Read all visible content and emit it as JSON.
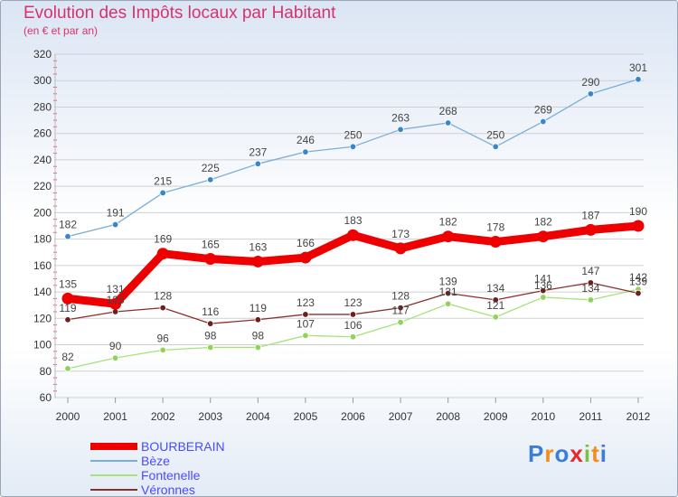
{
  "header": {
    "title": "Evolution des Impôts locaux par Habitant",
    "subtitle": "(en € et par an)"
  },
  "logo": {
    "text": "Proxiti"
  },
  "chart_data": {
    "type": "line",
    "title": "Evolution des Impôts locaux par Habitant",
    "subtitle": "(en € et par an)",
    "xlabel": "",
    "ylabel": "",
    "x": [
      "2000",
      "2001",
      "2002",
      "2003",
      "2004",
      "2005",
      "2006",
      "2007",
      "2008",
      "2009",
      "2010",
      "2011",
      "2012"
    ],
    "ylim": [
      60,
      320
    ],
    "yticks": [
      60,
      80,
      100,
      120,
      140,
      160,
      180,
      200,
      220,
      240,
      260,
      280,
      300,
      320
    ],
    "grid": "horizontal",
    "legend_position": "bottom-left",
    "series": [
      {
        "name": "BOURBERAIN",
        "color": "#ee0000",
        "point_color": "#ee0000",
        "emphasis": "thick",
        "values": [
          135,
          131,
          169,
          165,
          163,
          166,
          183,
          173,
          182,
          178,
          182,
          187,
          190
        ]
      },
      {
        "name": "Bèze",
        "color": "#7aaed8",
        "point_color": "#3a86c8",
        "emphasis": "thin",
        "values": [
          182,
          191,
          215,
          225,
          237,
          246,
          250,
          263,
          268,
          250,
          269,
          290,
          301
        ]
      },
      {
        "name": "Fontenelle",
        "color": "#a6e27a",
        "point_color": "#8ed35a",
        "emphasis": "thin",
        "values": [
          82,
          90,
          96,
          98,
          98,
          107,
          106,
          117,
          131,
          121,
          136,
          134,
          142
        ]
      },
      {
        "name": "Véronnes",
        "color": "#8b2e2e",
        "point_color": "#6b1f1f",
        "emphasis": "thin",
        "values": [
          119,
          125,
          128,
          116,
          119,
          123,
          123,
          128,
          139,
          134,
          141,
          147,
          139
        ]
      }
    ]
  }
}
